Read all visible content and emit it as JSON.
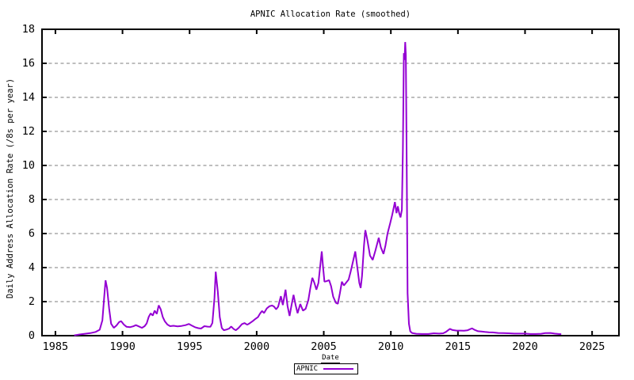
{
  "page": {
    "background_color": "#ffffff",
    "text_color": "#000000"
  },
  "chart_data": {
    "type": "line",
    "title": "APNIC Allocation Rate (smoothed)",
    "xlabel": "Date",
    "ylabel": "Daily Address Allocation Rate (/8s per year)",
    "xlim": [
      1984,
      2027
    ],
    "ylim": [
      0,
      18
    ],
    "xticks": [
      1985,
      1990,
      1995,
      2000,
      2005,
      2010,
      2015,
      2020,
      2025
    ],
    "yticks": [
      0,
      2,
      4,
      6,
      8,
      10,
      12,
      14,
      16,
      18
    ],
    "grid": {
      "horizontal": true,
      "vertical": false,
      "style": "dashed",
      "color": "#a8a8a8"
    },
    "axis_color": "#000000",
    "legend": {
      "position": "below-center",
      "boxed": true
    },
    "series": [
      {
        "name": "APNIC",
        "color": "#9400d3",
        "points": [
          [
            1986.4,
            0.02
          ],
          [
            1986.8,
            0.07
          ],
          [
            1987.2,
            0.11
          ],
          [
            1987.6,
            0.15
          ],
          [
            1988.0,
            0.22
          ],
          [
            1988.3,
            0.35
          ],
          [
            1988.5,
            0.9
          ],
          [
            1988.65,
            2.4
          ],
          [
            1988.74,
            3.25
          ],
          [
            1988.85,
            2.8
          ],
          [
            1989.0,
            1.6
          ],
          [
            1989.15,
            0.7
          ],
          [
            1989.35,
            0.46
          ],
          [
            1989.55,
            0.6
          ],
          [
            1989.75,
            0.8
          ],
          [
            1989.9,
            0.85
          ],
          [
            1990.1,
            0.65
          ],
          [
            1990.3,
            0.52
          ],
          [
            1990.55,
            0.5
          ],
          [
            1990.8,
            0.55
          ],
          [
            1991.0,
            0.62
          ],
          [
            1991.2,
            0.55
          ],
          [
            1991.45,
            0.46
          ],
          [
            1991.65,
            0.56
          ],
          [
            1991.8,
            0.72
          ],
          [
            1991.95,
            1.1
          ],
          [
            1992.1,
            1.31
          ],
          [
            1992.25,
            1.18
          ],
          [
            1992.4,
            1.47
          ],
          [
            1992.55,
            1.28
          ],
          [
            1992.7,
            1.78
          ],
          [
            1992.85,
            1.55
          ],
          [
            1993.0,
            1.1
          ],
          [
            1993.15,
            0.85
          ],
          [
            1993.35,
            0.65
          ],
          [
            1993.55,
            0.56
          ],
          [
            1993.8,
            0.58
          ],
          [
            1994.1,
            0.55
          ],
          [
            1994.4,
            0.57
          ],
          [
            1994.7,
            0.62
          ],
          [
            1994.95,
            0.69
          ],
          [
            1995.15,
            0.6
          ],
          [
            1995.4,
            0.5
          ],
          [
            1995.65,
            0.44
          ],
          [
            1995.85,
            0.42
          ],
          [
            1996.1,
            0.56
          ],
          [
            1996.35,
            0.53
          ],
          [
            1996.55,
            0.52
          ],
          [
            1996.7,
            0.75
          ],
          [
            1996.85,
            2.2
          ],
          [
            1996.95,
            3.76
          ],
          [
            1997.1,
            2.6
          ],
          [
            1997.25,
            1.1
          ],
          [
            1997.4,
            0.45
          ],
          [
            1997.55,
            0.32
          ],
          [
            1997.75,
            0.36
          ],
          [
            1997.95,
            0.42
          ],
          [
            1998.1,
            0.54
          ],
          [
            1998.3,
            0.38
          ],
          [
            1998.45,
            0.32
          ],
          [
            1998.65,
            0.45
          ],
          [
            1998.9,
            0.68
          ],
          [
            1999.1,
            0.74
          ],
          [
            1999.3,
            0.64
          ],
          [
            1999.5,
            0.74
          ],
          [
            1999.7,
            0.85
          ],
          [
            1999.9,
            0.98
          ],
          [
            2000.1,
            1.1
          ],
          [
            2000.25,
            1.3
          ],
          [
            2000.4,
            1.45
          ],
          [
            2000.55,
            1.33
          ],
          [
            2000.75,
            1.6
          ],
          [
            2000.95,
            1.73
          ],
          [
            2001.15,
            1.77
          ],
          [
            2001.3,
            1.7
          ],
          [
            2001.45,
            1.55
          ],
          [
            2001.6,
            1.7
          ],
          [
            2001.8,
            2.32
          ],
          [
            2001.95,
            1.8
          ],
          [
            2002.15,
            2.7
          ],
          [
            2002.3,
            1.75
          ],
          [
            2002.45,
            1.16
          ],
          [
            2002.6,
            1.8
          ],
          [
            2002.75,
            2.4
          ],
          [
            2002.9,
            1.8
          ],
          [
            2003.05,
            1.32
          ],
          [
            2003.25,
            1.86
          ],
          [
            2003.45,
            1.47
          ],
          [
            2003.65,
            1.58
          ],
          [
            2003.85,
            2.1
          ],
          [
            2004.0,
            2.8
          ],
          [
            2004.15,
            3.4
          ],
          [
            2004.3,
            3.1
          ],
          [
            2004.45,
            2.7
          ],
          [
            2004.6,
            3.1
          ],
          [
            2004.75,
            4.2
          ],
          [
            2004.85,
            4.95
          ],
          [
            2004.95,
            4.0
          ],
          [
            2005.05,
            3.17
          ],
          [
            2005.2,
            3.2
          ],
          [
            2005.4,
            3.26
          ],
          [
            2005.55,
            2.9
          ],
          [
            2005.7,
            2.3
          ],
          [
            2005.9,
            1.93
          ],
          [
            2006.05,
            1.87
          ],
          [
            2006.2,
            2.5
          ],
          [
            2006.35,
            3.17
          ],
          [
            2006.5,
            2.95
          ],
          [
            2006.65,
            3.1
          ],
          [
            2006.85,
            3.3
          ],
          [
            2007.0,
            3.75
          ],
          [
            2007.15,
            4.25
          ],
          [
            2007.35,
            4.95
          ],
          [
            2007.5,
            4.0
          ],
          [
            2007.65,
            3.1
          ],
          [
            2007.75,
            2.8
          ],
          [
            2007.85,
            3.5
          ],
          [
            2008.0,
            5.3
          ],
          [
            2008.1,
            6.2
          ],
          [
            2008.25,
            5.6
          ],
          [
            2008.45,
            4.7
          ],
          [
            2008.65,
            4.45
          ],
          [
            2008.85,
            5.0
          ],
          [
            2009.1,
            5.75
          ],
          [
            2009.25,
            5.2
          ],
          [
            2009.45,
            4.8
          ],
          [
            2009.6,
            5.3
          ],
          [
            2009.75,
            6.0
          ],
          [
            2009.95,
            6.6
          ],
          [
            2010.1,
            7.1
          ],
          [
            2010.3,
            7.85
          ],
          [
            2010.42,
            7.2
          ],
          [
            2010.52,
            7.6
          ],
          [
            2010.62,
            7.2
          ],
          [
            2010.72,
            6.95
          ],
          [
            2010.82,
            7.4
          ],
          [
            2010.9,
            11.0
          ],
          [
            2010.97,
            16.6
          ],
          [
            2011.02,
            16.2
          ],
          [
            2011.07,
            17.25
          ],
          [
            2011.12,
            16.5
          ],
          [
            2011.18,
            10.0
          ],
          [
            2011.25,
            2.5
          ],
          [
            2011.35,
            0.7
          ],
          [
            2011.45,
            0.25
          ],
          [
            2011.6,
            0.15
          ],
          [
            2011.9,
            0.11
          ],
          [
            2012.3,
            0.1
          ],
          [
            2012.8,
            0.1
          ],
          [
            2013.2,
            0.14
          ],
          [
            2013.6,
            0.12
          ],
          [
            2013.9,
            0.14
          ],
          [
            2014.1,
            0.22
          ],
          [
            2014.4,
            0.4
          ],
          [
            2014.6,
            0.33
          ],
          [
            2014.9,
            0.3
          ],
          [
            2015.2,
            0.3
          ],
          [
            2015.45,
            0.29
          ],
          [
            2015.7,
            0.31
          ],
          [
            2015.9,
            0.38
          ],
          [
            2016.05,
            0.43
          ],
          [
            2016.25,
            0.34
          ],
          [
            2016.5,
            0.26
          ],
          [
            2016.75,
            0.24
          ],
          [
            2017.0,
            0.22
          ],
          [
            2017.3,
            0.2
          ],
          [
            2017.6,
            0.19
          ],
          [
            2018.0,
            0.16
          ],
          [
            2018.4,
            0.15
          ],
          [
            2018.8,
            0.14
          ],
          [
            2019.2,
            0.12
          ],
          [
            2019.6,
            0.12
          ],
          [
            2020.0,
            0.12
          ],
          [
            2020.4,
            0.1
          ],
          [
            2020.8,
            0.1
          ],
          [
            2021.2,
            0.11
          ],
          [
            2021.5,
            0.15
          ],
          [
            2021.9,
            0.16
          ],
          [
            2022.2,
            0.12
          ],
          [
            2022.5,
            0.1
          ],
          [
            2022.7,
            0.09
          ]
        ]
      }
    ]
  }
}
